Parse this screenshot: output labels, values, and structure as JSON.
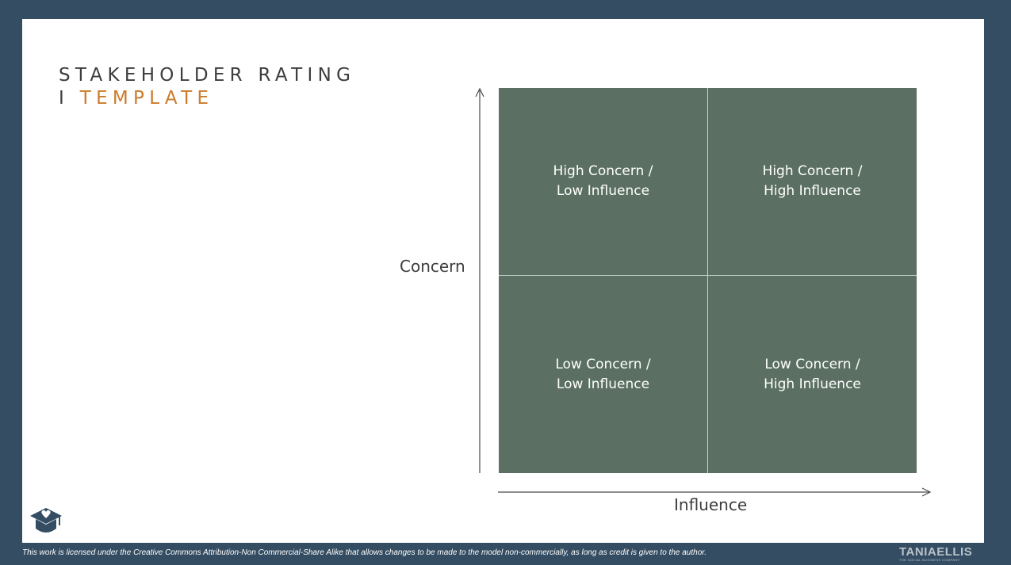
{
  "title": {
    "line1": "STAKEHOLDER RATING",
    "line2_prefix": "I",
    "line2_accent": "TEMPLATE"
  },
  "matrix": {
    "y_axis_label": "Concern",
    "x_axis_label": "Influence",
    "quadrants": {
      "top_left": "High Concern / Low Influence",
      "top_right": "High Concern / High Influence",
      "bottom_left": "Low Concern / Low Influence",
      "bottom_right": "Low Concern / High Influence"
    }
  },
  "footer": {
    "license": "This work is licensed under the Creative Commons Attribution-Non Commercial-Share Alike that allows changes to be made to the model non-commercially, as long as credit is given to the author.",
    "brand_name": "TANIAELLIS",
    "brand_tagline": "THE SOCIAL BUSINESS COMPANY"
  },
  "icons": {
    "logo": "graduation-cap-heart-icon"
  },
  "colors": {
    "frame": "#344d62",
    "quadrant": "#5b6f62",
    "accent": "#cc7a2b",
    "title": "#3d3d3d"
  }
}
